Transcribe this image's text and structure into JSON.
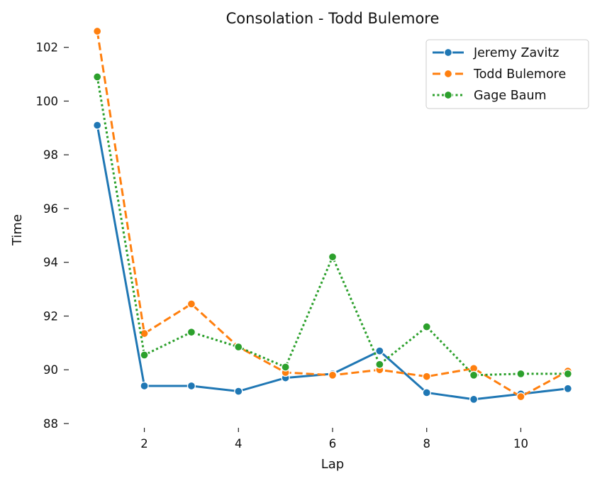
{
  "chart_data": {
    "type": "line",
    "title": "Consolation - Todd Bulemore",
    "xlabel": "Lap",
    "ylabel": "Time",
    "x": [
      1,
      2,
      3,
      4,
      5,
      6,
      7,
      8,
      9,
      10,
      11
    ],
    "xticks": [
      "2",
      "4",
      "6",
      "8",
      "10"
    ],
    "yticks": [
      "88",
      "90",
      "92",
      "94",
      "96",
      "98",
      "100",
      "102"
    ],
    "xlim": [
      0.5,
      11.5
    ],
    "ylim": [
      88,
      102.6
    ],
    "grid": false,
    "legend": "top-right",
    "series": [
      {
        "name": "Jeremy Zavitz",
        "color": "#1f77b4",
        "linestyle": "solid",
        "values": [
          99.1,
          89.4,
          89.4,
          89.2,
          89.7,
          89.85,
          90.7,
          89.15,
          88.9,
          89.1,
          89.3
        ]
      },
      {
        "name": "Todd Bulemore",
        "color": "#ff7f0e",
        "linestyle": "dashed",
        "values": [
          102.6,
          91.35,
          92.45,
          90.85,
          89.9,
          89.8,
          90.0,
          89.75,
          90.05,
          89.0,
          89.95
        ]
      },
      {
        "name": "Gage Baum",
        "color": "#2ca02c",
        "linestyle": "dotted",
        "values": [
          100.9,
          90.55,
          91.4,
          90.85,
          90.1,
          94.2,
          90.2,
          91.6,
          89.8,
          89.85,
          89.85
        ]
      }
    ]
  }
}
